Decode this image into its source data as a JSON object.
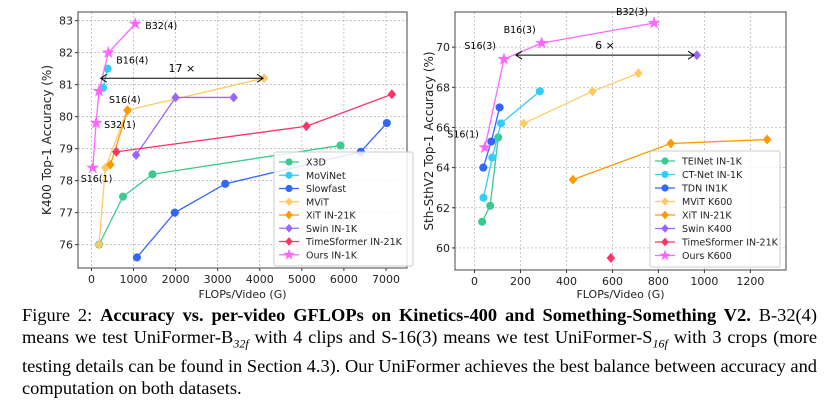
{
  "chart_data": [
    {
      "type": "line",
      "xlabel": "FLOPs/Video (G)",
      "ylabel": "K400 Top-1 Accuracy (%)",
      "xlim": [
        -320,
        7500
      ],
      "ylim": [
        75.27,
        83.27
      ],
      "xticks": [
        0,
        1000,
        2000,
        3000,
        4000,
        5000,
        6000,
        7000
      ],
      "yticks": [
        76,
        77,
        78,
        79,
        80,
        81,
        82,
        83
      ],
      "grid": true,
      "legend_position": "bottom-right",
      "series": [
        {
          "name": "X3D",
          "color": "#3cc98e",
          "marker": "circle",
          "points": [
            [
              180,
              76.0
            ],
            [
              750,
              77.5
            ],
            [
              1450,
              78.2
            ],
            [
              5920,
              79.1
            ]
          ]
        },
        {
          "name": "MoViNet",
          "color": "#33cdf7",
          "marker": "circle",
          "points": [
            [
              275,
              80.9
            ],
            [
              385,
              81.5
            ]
          ]
        },
        {
          "name": "Slowfast",
          "color": "#3366ff",
          "marker": "circle",
          "points": [
            [
              1080,
              75.6
            ],
            [
              1980,
              77.0
            ],
            [
              3180,
              77.9
            ],
            [
              6400,
              78.9
            ],
            [
              7020,
              79.8
            ]
          ]
        },
        {
          "name": "MViT",
          "color": "#ffc966",
          "marker": "diamond",
          "points": [
            [
              180,
              76.0
            ],
            [
              330,
              78.4
            ],
            [
              850,
              80.2
            ],
            [
              4100,
              81.2
            ]
          ]
        },
        {
          "name": "XiT IN-21K",
          "color": "#ff9900",
          "marker": "diamond",
          "points": [
            [
              450,
              78.5
            ],
            [
              860,
              80.2
            ]
          ]
        },
        {
          "name": "Swin IN-1K",
          "color": "#9966ff",
          "marker": "diamond",
          "points": [
            [
              1060,
              78.8
            ],
            [
              2000,
              80.6
            ],
            [
              3380,
              80.6
            ]
          ]
        },
        {
          "name": "TimeSformer IN-21K",
          "color": "#ff3366",
          "marker": "diamond",
          "points": [
            [
              590,
              78.9
            ],
            [
              5110,
              79.7
            ],
            [
              7140,
              80.7
            ]
          ]
        },
        {
          "name": "Ours IN-1K",
          "color": "#ff66ff",
          "marker": "star",
          "points": [
            [
              30,
              78.4
            ],
            [
              110,
              79.8
            ],
            [
              180,
              80.8
            ],
            [
              400,
              82.0
            ],
            [
              1040,
              82.9
            ]
          ]
        }
      ],
      "annotations": [
        {
          "text": "S16(1)",
          "x": 30,
          "y": 78.4
        },
        {
          "text": "S32(1)",
          "x": 110,
          "y": 79.8
        },
        {
          "text": "S16(4)",
          "x": 180,
          "y": 80.8
        },
        {
          "text": "B16(4)",
          "x": 400,
          "y": 82.0
        },
        {
          "text": "B32(4)",
          "x": 1040,
          "y": 82.9
        }
      ],
      "arrow": {
        "label": "17 ×",
        "x_from": 220,
        "x_to": 4080,
        "y": 81.2
      }
    },
    {
      "type": "line",
      "xlabel": "FLOPs/Video (G)",
      "ylabel": "Sth-SthV2 Top-1 Accuracy (%)",
      "xlim": [
        -85,
        1355
      ],
      "ylim": [
        58.9,
        71.75
      ],
      "xticks": [
        0,
        200,
        400,
        600,
        800,
        1000,
        1200
      ],
      "yticks": [
        60,
        62,
        64,
        66,
        68,
        70
      ],
      "grid": true,
      "legend_position": "bottom-right",
      "series": [
        {
          "name": "TEINet IN-1K",
          "color": "#3cc98e",
          "marker": "circle",
          "points": [
            [
              33,
              61.3
            ],
            [
              68,
              62.1
            ],
            [
              103,
              65.5
            ]
          ]
        },
        {
          "name": "CT-Net IN-1K",
          "color": "#33cdf7",
          "marker": "circle",
          "points": [
            [
              39,
              62.5
            ],
            [
              77,
              64.5
            ],
            [
              115,
              66.2
            ],
            [
              284,
              67.8
            ]
          ]
        },
        {
          "name": "TDN IN1K",
          "color": "#3366ff",
          "marker": "circle",
          "points": [
            [
              38,
              64.0
            ],
            [
              73,
              65.3
            ],
            [
              109,
              67.0
            ]
          ]
        },
        {
          "name": "MViT K600",
          "color": "#ffc966",
          "marker": "diamond",
          "points": [
            [
              214,
              66.2
            ],
            [
              513,
              67.8
            ],
            [
              713,
              68.7
            ]
          ]
        },
        {
          "name": "XiT IN-21K",
          "color": "#ff9900",
          "marker": "diamond",
          "points": [
            [
              428,
              63.4
            ],
            [
              854,
              65.2
            ],
            [
              1273,
              65.4
            ]
          ]
        },
        {
          "name": "Swin K400",
          "color": "#9966ff",
          "marker": "diamond",
          "points": [
            [
              967,
              69.6
            ]
          ]
        },
        {
          "name": "TimeSformer IN-21K",
          "color": "#ff3366",
          "marker": "diamond",
          "points": [
            [
              593,
              59.5
            ]
          ]
        },
        {
          "name": "Ours K600",
          "color": "#ff66ff",
          "marker": "star",
          "points": [
            [
              45,
              65.0
            ],
            [
              128,
              69.4
            ],
            [
              292,
              70.2
            ],
            [
              781,
              71.2
            ]
          ]
        }
      ],
      "annotations": [
        {
          "text": "S16(1)",
          "x": 45,
          "y": 65.0
        },
        {
          "text": "S16(3)",
          "x": 128,
          "y": 69.4
        },
        {
          "text": "B16(3)",
          "x": 292,
          "y": 70.2
        },
        {
          "text": "B32(3)",
          "x": 781,
          "y": 71.2
        }
      ],
      "arrow": {
        "label": "6 ×",
        "x_from": 180,
        "x_to": 955,
        "y": 69.6
      }
    }
  ],
  "caption": {
    "prefix": "Figure 2: ",
    "bold": "Accuracy vs. per-video GFLOPs on Kinetics-400 and Something-Something V2.",
    "part1": " B-32(4) means we test UniFormer-B",
    "sub1": "32f",
    "part2": " with 4 clips and S-16(3) means we test UniFormer-S",
    "sub2": "16f",
    "part3": " with 3 crops (more testing details can be found in Section 4.3). Our UniFormer achieves the best balance between accuracy and computation on both datasets."
  }
}
